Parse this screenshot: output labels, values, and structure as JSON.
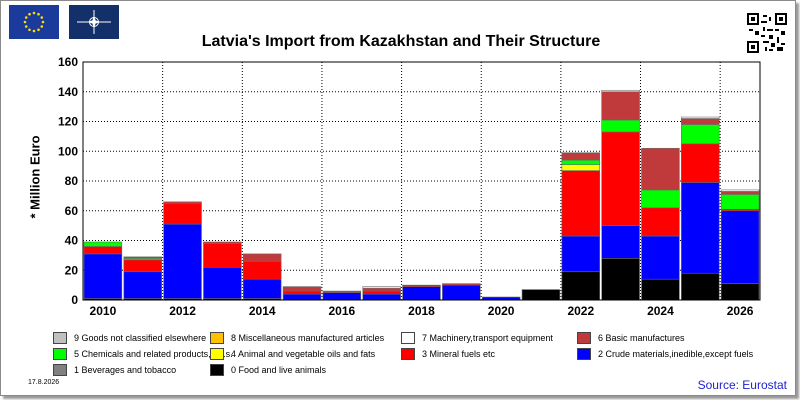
{
  "title": "Latvia's Import from Kazakhstan and Their Structure",
  "date": "17.8.2026",
  "source": "Source: Eurostat",
  "chart_data": {
    "type": "bar",
    "stacked": true,
    "title": "Latvia's Import from Kazakhstan and Their Structure",
    "ylabel": "* Million Euro",
    "xlabel": "",
    "ylim": [
      0,
      160
    ],
    "yticks": [
      0,
      20,
      40,
      60,
      80,
      100,
      120,
      140,
      160
    ],
    "grid": true,
    "categories": [
      "2010",
      "2011",
      "2012",
      "2013",
      "2014",
      "2015",
      "2016",
      "2017",
      "2018",
      "2019",
      "2020",
      "2021",
      "2022",
      "2023",
      "2024",
      "2025",
      "2026"
    ],
    "xtick_labels": [
      "2010",
      "2012",
      "2014",
      "2016",
      "2018",
      "2020",
      "2022",
      "2024",
      "2026"
    ],
    "series": [
      {
        "name": "0 Food and live animals",
        "color": "#000000",
        "values": [
          1,
          1,
          1,
          1,
          1,
          0,
          0,
          0,
          0,
          0,
          0,
          7,
          19,
          28,
          14,
          18,
          11
        ]
      },
      {
        "name": "1 Beverages and tobacco",
        "color": "#808080",
        "values": [
          0,
          0,
          0,
          0,
          0,
          0,
          0,
          0,
          0,
          0,
          0,
          0,
          0,
          0,
          0,
          0,
          0
        ]
      },
      {
        "name": "2 Crude materials,inedible,except fuels",
        "color": "#0000ff",
        "values": [
          30,
          18,
          50,
          21,
          13,
          4,
          5,
          4,
          9,
          10,
          2,
          0,
          24,
          22,
          29,
          61,
          49
        ]
      },
      {
        "name": "3 Mineral fuels etc",
        "color": "#ff0000",
        "values": [
          5,
          8,
          14,
          16,
          12,
          2,
          0,
          2,
          1,
          0,
          0,
          0,
          44,
          63,
          19,
          26,
          1
        ]
      },
      {
        "name": "4 Animal and vegetable oils and fats",
        "color": "#ffff00",
        "values": [
          0,
          0,
          0,
          0,
          0,
          0,
          0,
          0,
          0,
          0,
          0,
          0,
          4,
          0,
          0,
          0,
          0
        ]
      },
      {
        "name": "5 Chemicals and related products,n.e.s.",
        "color": "#00ff00",
        "values": [
          3,
          1,
          0,
          0,
          0,
          0,
          0,
          0,
          0,
          0,
          0,
          0,
          3,
          8,
          12,
          13,
          10
        ]
      },
      {
        "name": "6 Basic manufactures",
        "color": "#c0393b",
        "values": [
          0,
          1,
          1,
          1,
          5,
          3,
          1,
          2,
          0,
          1,
          0,
          0,
          5,
          19,
          28,
          4,
          2
        ]
      },
      {
        "name": "7 Machinery,transport equipment",
        "color": "#ffffff",
        "values": [
          0,
          0,
          0,
          0,
          0,
          0,
          0,
          1,
          0,
          0,
          0,
          0,
          0,
          1,
          0,
          1,
          1
        ]
      },
      {
        "name": "8 Miscellaneous manufactured articles",
        "color": "#ffc000",
        "values": [
          0,
          0,
          0,
          0,
          0,
          0,
          0,
          0,
          0,
          0,
          0,
          0,
          0,
          0,
          0,
          0,
          0
        ]
      },
      {
        "name": "9 Goods not classified elsewhere",
        "color": "#c0c0c0",
        "values": [
          0,
          0,
          0,
          0,
          0,
          0,
          0,
          0,
          0,
          0,
          0,
          0,
          0,
          0,
          0,
          0,
          0
        ]
      }
    ],
    "legend": [
      [
        "9 Goods not classified elsewhere",
        "8 Miscellaneous manufactured articles",
        "7 Machinery,transport equipment",
        "6 Basic manufactures"
      ],
      [
        "5 Chemicals and related products,n.e.s.",
        "4 Animal and vegetable oils and fats",
        "3 Mineral fuels etc",
        "2 Crude materials,inedible,except fuels"
      ],
      [
        "1 Beverages and tobacco",
        "0 Food and live animals"
      ]
    ],
    "legend_colors": [
      [
        "#c0c0c0",
        "#ffc000",
        "#ffffff",
        "#c0393b"
      ],
      [
        "#00ff00",
        "#ffff00",
        "#ff0000",
        "#0000ff"
      ],
      [
        "#808080",
        "#000000"
      ]
    ]
  }
}
